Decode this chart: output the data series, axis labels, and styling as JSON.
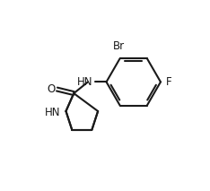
{
  "background_color": "#ffffff",
  "line_color": "#1a1a1a",
  "line_width": 1.5,
  "font_size": 8.5,
  "figsize": [
    2.34,
    2.13
  ],
  "dpi": 100,
  "xlim": [
    0.0,
    7.5
  ],
  "ylim": [
    0.0,
    7.0
  ]
}
